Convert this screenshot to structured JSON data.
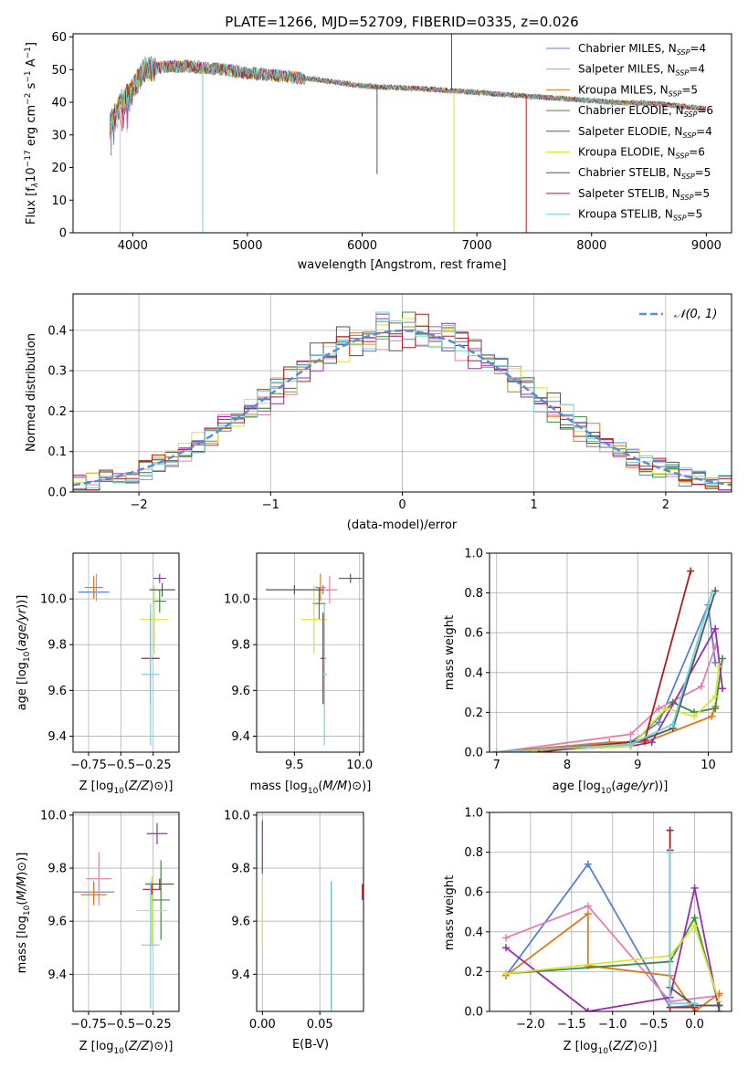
{
  "figure": {
    "title": "PLATE=1266, MJD=52709, FIBERID=0335, z=0.026"
  },
  "colors": {
    "Chabrier MILES": "#5b7fd6",
    "Salpeter MILES": "#e37fae",
    "Kroupa MILES": "#e0781c",
    "Chabrier ELODIE": "#3f8a3f",
    "Salpeter ELODIE": "#9a2bb0",
    "Kroupa ELODIE": "#d7e63a",
    "Chabrier STELIB": "#555555",
    "Salpeter STELIB": "#b31b1b",
    "Kroupa STELIB": "#6fd3dc"
  },
  "chart_data": [
    {
      "id": "spectrum",
      "type": "line",
      "title": "PLATE=1266, MJD=52709, FIBERID=0335, z=0.026",
      "xlabel": "wavelength [Angstrom, rest frame]",
      "ylabel": "Flux [f_λ 10^-17 erg cm^-2 s^-1 A^-1]",
      "xlim": [
        3480,
        9220
      ],
      "ylim": [
        0,
        61
      ],
      "xticks": [
        4000,
        5000,
        6000,
        7000,
        8000,
        9000
      ],
      "yticks": [
        0,
        10,
        20,
        30,
        40,
        50,
        60
      ],
      "grid": false,
      "legend_position": "top-right",
      "legend": [
        {
          "name": "Chabrier MILES",
          "label": "Chabrier MILES, N",
          "n": "=4"
        },
        {
          "name": "Salpeter MILES",
          "label": "Salpeter MILES, N",
          "n": "=4"
        },
        {
          "name": "Kroupa MILES",
          "label": "Kroupa MILES, N",
          "n": "=5"
        },
        {
          "name": "Chabrier ELODIE",
          "label": "Chabrier ELODIE, N",
          "n": "=6"
        },
        {
          "name": "Salpeter ELODIE",
          "label": "Salpeter ELODIE, N",
          "n": "=4"
        },
        {
          "name": "Kroupa ELODIE",
          "label": "Kroupa ELODIE, N",
          "n": "=6"
        },
        {
          "name": "Chabrier STELIB",
          "label": "Chabrier STELIB, N",
          "n": "=5"
        },
        {
          "name": "Salpeter STELIB",
          "label": "Salpeter STELIB, N",
          "n": "=5"
        },
        {
          "name": "Kroupa STELIB",
          "label": "Kroupa STELIB, N",
          "n": "=5"
        }
      ],
      "continuum": {
        "x": [
          3800,
          3900,
          4000,
          4100,
          4300,
          4500,
          4800,
          5000,
          5300,
          5600,
          6000,
          6300,
          6600,
          7000,
          7400,
          7800,
          8200,
          8600,
          9000
        ],
        "y": [
          33,
          40,
          44,
          50,
          51,
          51,
          50,
          49,
          48,
          47,
          45,
          44.5,
          44,
          43,
          42,
          41,
          40,
          39.5,
          38
        ]
      },
      "spike_ends": [
        {
          "series": "Kroupa ELODIE",
          "x": 3890,
          "y": 0
        },
        {
          "series": "Kroupa STELIB",
          "x": 4610,
          "y": 0
        },
        {
          "series": "Kroupa ELODIE",
          "x": 6800,
          "y": 0
        },
        {
          "series": "Salpeter STELIB",
          "x": 7430,
          "y": 0
        },
        {
          "series": "Chabrier STELIB",
          "x": 6130,
          "y": 18
        },
        {
          "series": "Chabrier STELIB",
          "x": 6780,
          "y": 61
        }
      ]
    },
    {
      "id": "residuals",
      "type": "histogram",
      "xlabel": "(data-model)/error",
      "ylabel": "Normed distribution",
      "xlim": [
        -2.5,
        2.5
      ],
      "ylim": [
        0,
        0.49
      ],
      "xticks": [
        -2,
        -1,
        0,
        1,
        2
      ],
      "yticks": [
        0.0,
        0.1,
        0.2,
        0.3,
        0.4
      ],
      "grid": true,
      "legend_position": "top-right",
      "legend_label": "𝒩(0, 1)",
      "reference_curve": {
        "type": "normal",
        "mean": 0,
        "sigma": 1,
        "color": "#5b8bd6"
      },
      "bin_width": 0.1
    },
    {
      "id": "age-vs-Z",
      "type": "errorbar",
      "xlabel": "Z [log10(Z/Z⊙)]",
      "ylabel": "age  [log10(age/yr)]",
      "xlim": [
        -0.87,
        -0.05
      ],
      "ylim": [
        9.33,
        10.2
      ],
      "xticks": [
        -0.75,
        -0.5,
        -0.25
      ],
      "yticks": [
        9.4,
        9.6,
        9.8,
        10.0
      ],
      "grid": true,
      "points": [
        {
          "series": "Chabrier MILES",
          "x": -0.71,
          "xerr": 0.12,
          "y": 10.03,
          "yerr": 0.02
        },
        {
          "series": "Salpeter MILES",
          "x": -0.69,
          "xerr": 0.05,
          "y": 10.05,
          "yerr": 0.06
        },
        {
          "series": "Kroupa MILES",
          "x": -0.71,
          "xerr": 0.07,
          "y": 10.05,
          "yerr": 0.05
        },
        {
          "series": "Chabrier ELODIE",
          "x": -0.2,
          "xerr": 0.05,
          "y": 9.99,
          "yerr": 0.05
        },
        {
          "series": "Salpeter ELODIE",
          "x": -0.2,
          "xerr": 0.05,
          "y": 10.09,
          "yerr": 0.02
        },
        {
          "series": "Kroupa ELODIE",
          "x": -0.24,
          "xerr": 0.11,
          "y": 9.91,
          "yerr": 0.15
        },
        {
          "series": "Chabrier STELIB",
          "x": -0.18,
          "xerr": 0.1,
          "y": 10.04,
          "yerr": 0.03
        },
        {
          "series": "Salpeter STELIB",
          "x": -0.27,
          "xerr": 0.07,
          "y": 9.74,
          "yerr": 0.2
        },
        {
          "series": "Kroupa STELIB",
          "x": -0.27,
          "xerr": 0.07,
          "y": 9.67,
          "yerr": 0.31
        }
      ]
    },
    {
      "id": "age-vs-mass",
      "type": "errorbar",
      "xlabel": "mass [log10(M/M⊙)]",
      "ylabel": "",
      "xlim": [
        9.21,
        10.03
      ],
      "ylim": [
        9.33,
        10.2
      ],
      "xticks": [
        9.5,
        10.0
      ],
      "yticks": [
        9.4,
        9.6,
        9.8,
        10.0
      ],
      "grid": true,
      "points": [
        {
          "series": "Chabrier MILES",
          "x": 9.72,
          "xerr": 0.05,
          "y": 10.04,
          "yerr": 0.02
        },
        {
          "series": "Salpeter MILES",
          "x": 9.77,
          "xerr": 0.06,
          "y": 10.04,
          "yerr": 0.06
        },
        {
          "series": "Kroupa MILES",
          "x": 9.7,
          "xerr": 0.04,
          "y": 10.05,
          "yerr": 0.06
        },
        {
          "series": "Chabrier ELODIE",
          "x": 9.69,
          "xerr": 0.05,
          "y": 9.98,
          "yerr": 0.07
        },
        {
          "series": "Salpeter ELODIE",
          "x": 9.93,
          "xerr": 0.09,
          "y": 10.09,
          "yerr": 0.02
        },
        {
          "series": "Kroupa ELODIE",
          "x": 9.65,
          "xerr": 0.1,
          "y": 9.91,
          "yerr": 0.15
        },
        {
          "series": "Chabrier STELIB",
          "x": 9.5,
          "xerr": 0.22,
          "y": 10.04,
          "yerr": 0.02
        },
        {
          "series": "Salpeter STELIB",
          "x": 9.72,
          "xerr": 0.02,
          "y": 9.74,
          "yerr": 0.2
        },
        {
          "series": "Kroupa STELIB",
          "x": 9.73,
          "xerr": 0.02,
          "y": 9.67,
          "yerr": 0.31
        }
      ]
    },
    {
      "id": "massweight-vs-age",
      "type": "line",
      "xlabel": "age  [log10(age/yr)]",
      "ylabel": "mass weight",
      "xlim": [
        6.9,
        10.33
      ],
      "ylim": [
        0,
        1.0
      ],
      "xticks": [
        7,
        8,
        9,
        10
      ],
      "yticks": [
        0.0,
        0.2,
        0.4,
        0.6,
        0.8,
        1.0
      ],
      "grid": true,
      "series": [
        {
          "name": "Chabrier MILES",
          "x": [
            7.0,
            8.9,
            9.3,
            10.0,
            10.1
          ],
          "y": [
            0.0,
            0.05,
            0.15,
            0.74,
            0.45
          ]
        },
        {
          "name": "Salpeter MILES",
          "x": [
            7.0,
            8.9,
            9.3,
            9.9,
            10.1
          ],
          "y": [
            0.0,
            0.09,
            0.22,
            0.33,
            0.53
          ]
        },
        {
          "name": "Kroupa MILES",
          "x": [
            7.0,
            8.6,
            9.1,
            10.05,
            10.1
          ],
          "y": [
            0.0,
            0.05,
            0.05,
            0.18,
            0.23
          ]
        },
        {
          "name": "Chabrier ELODIE",
          "x": [
            7.0,
            8.9,
            9.5,
            9.8,
            10.1,
            10.2
          ],
          "y": [
            0.0,
            0.03,
            0.25,
            0.2,
            0.22,
            0.47
          ]
        },
        {
          "name": "Salpeter ELODIE",
          "x": [
            7.0,
            8.9,
            9.2,
            10.1,
            10.2
          ],
          "y": [
            0.0,
            0.03,
            0.05,
            0.62,
            0.32
          ]
        },
        {
          "name": "Kroupa ELODIE",
          "x": [
            7.0,
            8.9,
            9.4,
            9.8,
            10.1,
            10.15
          ],
          "y": [
            0.0,
            0.03,
            0.22,
            0.18,
            0.28,
            0.43
          ]
        },
        {
          "name": "Chabrier STELIB",
          "x": [
            7.0,
            8.9,
            9.5,
            10.1
          ],
          "y": [
            0.0,
            0.04,
            0.12,
            0.81
          ]
        },
        {
          "name": "Salpeter STELIB",
          "x": [
            7.6,
            9.1,
            9.75
          ],
          "y": [
            0.0,
            0.06,
            0.91
          ]
        },
        {
          "name": "Kroupa STELIB",
          "x": [
            7.0,
            8.9,
            9.5,
            10.05
          ],
          "y": [
            0.0,
            0.04,
            0.14,
            0.8
          ]
        }
      ]
    },
    {
      "id": "mass-vs-Z",
      "type": "errorbar",
      "xlabel": "Z [log10(Z/Z⊙)]",
      "ylabel": "mass [log10(M/M⊙)]",
      "xlim": [
        -0.87,
        -0.05
      ],
      "ylim": [
        9.26,
        10.01
      ],
      "xticks": [
        -0.75,
        -0.5,
        -0.25
      ],
      "yticks": [
        9.4,
        9.6,
        9.8,
        10.0
      ],
      "grid": true,
      "points": [
        {
          "series": "Chabrier MILES",
          "x": -0.71,
          "xerr": 0.16,
          "y": 9.71,
          "yerr": 0.04
        },
        {
          "series": "Salpeter MILES",
          "x": -0.67,
          "xerr": 0.1,
          "y": 9.76,
          "yerr": 0.1
        },
        {
          "series": "Kroupa MILES",
          "x": -0.71,
          "xerr": 0.1,
          "y": 9.7,
          "yerr": 0.04
        },
        {
          "series": "Chabrier ELODIE",
          "x": -0.19,
          "xerr": 0.07,
          "y": 9.68,
          "yerr": 0.15
        },
        {
          "series": "Salpeter ELODIE",
          "x": -0.22,
          "xerr": 0.08,
          "y": 9.93,
          "yerr": 0.04
        },
        {
          "series": "Kroupa ELODIE",
          "x": -0.26,
          "xerr": 0.12,
          "y": 9.64,
          "yerr": 0.13
        },
        {
          "series": "Chabrier STELIB",
          "x": -0.2,
          "xerr": 0.11,
          "y": 9.74,
          "yerr": 0.02
        },
        {
          "series": "Salpeter STELIB",
          "x": -0.26,
          "xerr": 0.07,
          "y": 9.72,
          "yerr": 0.02
        },
        {
          "series": "Kroupa STELIB",
          "x": -0.27,
          "xerr": 0.07,
          "y": 9.51,
          "yerr": 0.24
        }
      ]
    },
    {
      "id": "mass-vs-ebv",
      "type": "errorbar",
      "xlabel": "E(B-V)",
      "ylabel": "",
      "xlim": [
        -0.005,
        0.088
      ],
      "ylim": [
        9.26,
        10.01
      ],
      "xticks": [
        0.0,
        0.05
      ],
      "yticks": [
        9.4,
        9.6,
        9.8,
        10.0
      ],
      "grid": true,
      "points": [
        {
          "series": "Salpeter ELODIE",
          "x": 0.0,
          "xerr": 0,
          "y": 9.88,
          "yerr": 0.1
        },
        {
          "series": "Kroupa ELODIE",
          "x": 0.0,
          "xerr": 0,
          "y": 9.63,
          "yerr": 0.13
        },
        {
          "series": "Chabrier STELIB",
          "x": 0.06,
          "xerr": 0,
          "y": 9.51,
          "yerr": 0.24
        },
        {
          "series": "Kroupa STELIB",
          "x": 0.06,
          "xerr": 0,
          "y": 9.5,
          "yerr": 0.25
        },
        {
          "series": "Salpeter STELIB",
          "x": 0.087,
          "xerr": 0,
          "y": 9.71,
          "yerr": 0.03
        }
      ]
    },
    {
      "id": "massweight-vs-Z",
      "type": "line",
      "xlabel": "Z [log10(Z/Z⊙)]",
      "ylabel": "mass weight",
      "xlim": [
        -2.5,
        0.45
      ],
      "ylim": [
        0,
        1.0
      ],
      "xticks": [
        -2.0,
        -1.5,
        -1.0,
        -0.5,
        0.0
      ],
      "yticks": [
        0.0,
        0.2,
        0.4,
        0.6,
        0.8,
        1.0
      ],
      "grid": true,
      "series": [
        {
          "name": "Chabrier MILES",
          "x": [
            -2.3,
            -1.3,
            -0.3,
            0.0,
            0.3
          ],
          "y": [
            0.18,
            0.74,
            0.02,
            0.03,
            0.03
          ]
        },
        {
          "name": "Salpeter MILES",
          "x": [
            -2.3,
            -1.3,
            -0.3,
            0.3
          ],
          "y": [
            0.37,
            0.53,
            0.05,
            0.08
          ]
        },
        {
          "name": "Kroupa MILES",
          "x": [
            -2.3,
            -1.3,
            -1.3,
            -0.3,
            0.0,
            0.3
          ],
          "y": [
            0.18,
            0.49,
            0.23,
            0.18,
            0.0,
            0.09
          ]
        },
        {
          "name": "Chabrier ELODIE",
          "x": [
            -2.3,
            -0.3,
            0.0,
            0.3
          ],
          "y": [
            0.19,
            0.25,
            0.47,
            0.03
          ]
        },
        {
          "name": "Salpeter ELODIE",
          "x": [
            -2.3,
            -1.3,
            -0.3,
            0.0,
            0.3
          ],
          "y": [
            0.32,
            0.0,
            0.07,
            0.62,
            0.0
          ]
        },
        {
          "name": "Kroupa ELODIE",
          "x": [
            -2.3,
            -0.3,
            0.0,
            0.3
          ],
          "y": [
            0.19,
            0.28,
            0.43,
            0.05
          ]
        },
        {
          "name": "Chabrier STELIB",
          "x": [
            -0.3,
            -0.3,
            0.0,
            0.3
          ],
          "y": [
            0.81,
            0.12,
            0.03,
            0.03
          ]
        },
        {
          "name": "Salpeter STELIB",
          "x": [
            -0.3,
            -0.3,
            0.0
          ],
          "y": [
            0.91,
            0.02,
            0.02
          ]
        },
        {
          "name": "Kroupa STELIB",
          "x": [
            -0.3,
            -0.3,
            0.0
          ],
          "y": [
            0.8,
            0.04,
            0.04
          ]
        }
      ]
    }
  ]
}
